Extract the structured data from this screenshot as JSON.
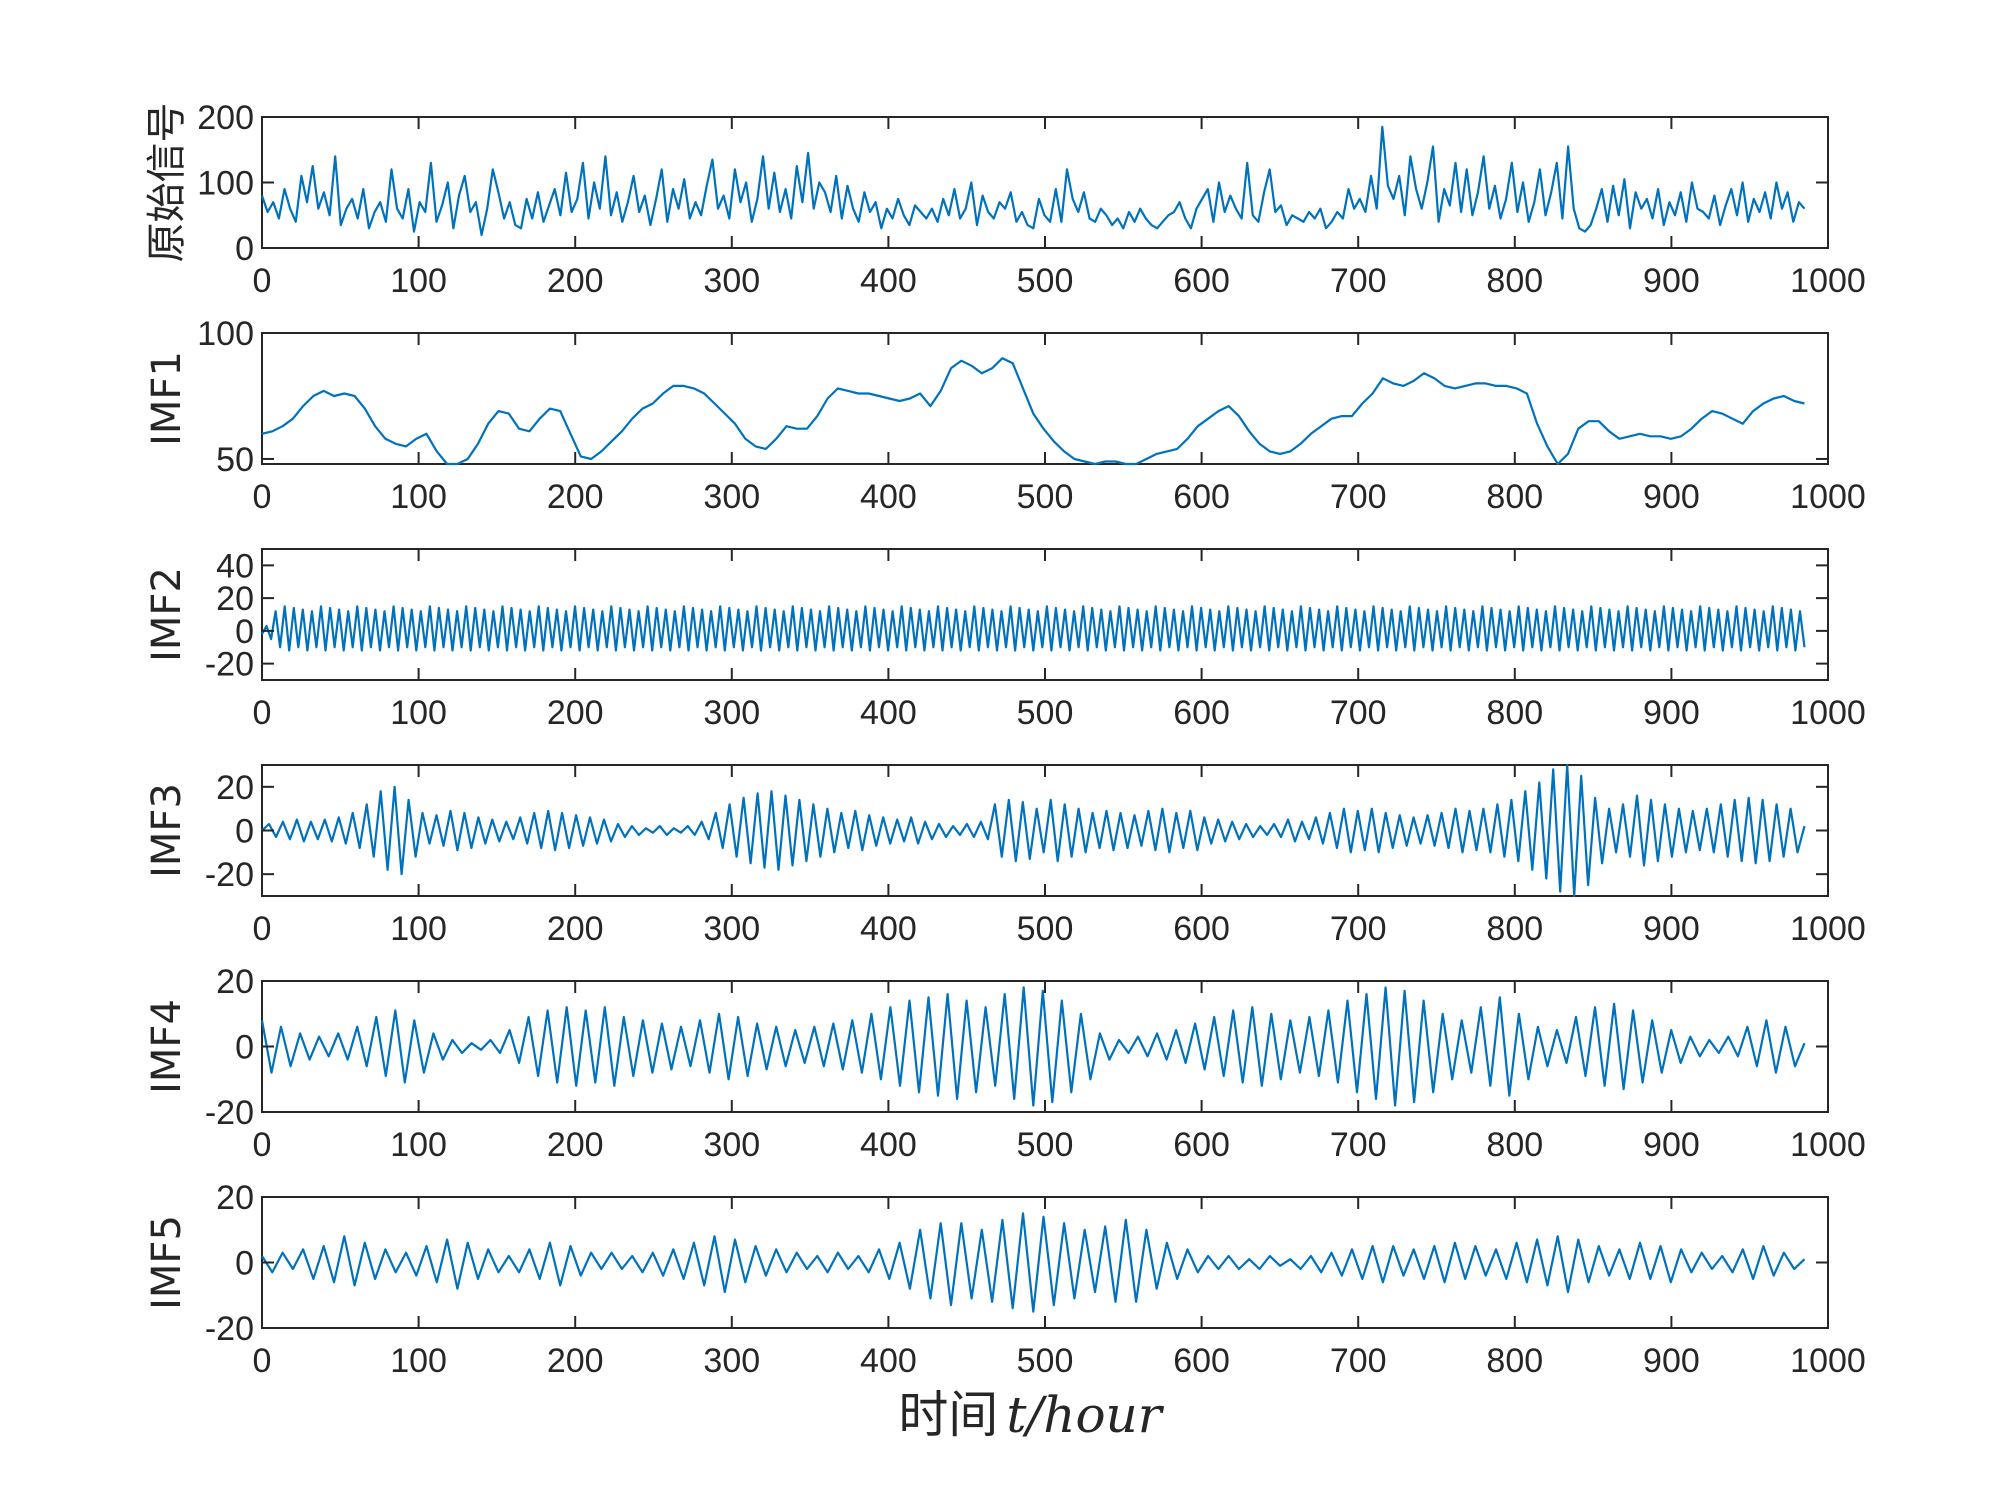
{
  "chart_data": {
    "type": "line",
    "layout": "stacked-subplots",
    "xlabel": {
      "chinese": "时间",
      "symbol": "t/hour"
    },
    "xlim": [
      0,
      1000
    ],
    "xticks": [
      0,
      100,
      200,
      300,
      400,
      500,
      600,
      700,
      800,
      900,
      1000
    ],
    "grid": false,
    "line_color": "#0072bd",
    "subplots": [
      {
        "ylabel": "原始信号",
        "ylim": [
          0,
          200
        ],
        "yticks": [
          0,
          100,
          200
        ],
        "values": [
          80,
          55,
          70,
          45,
          90,
          60,
          40,
          110,
          70,
          125,
          60,
          85,
          50,
          140,
          35,
          60,
          75,
          45,
          90,
          30,
          55,
          70,
          40,
          120,
          60,
          45,
          90,
          25,
          70,
          55,
          130,
          40,
          65,
          100,
          30,
          80,
          110,
          55,
          70,
          20,
          60,
          120,
          85,
          45,
          70,
          35,
          30,
          75,
          45,
          85,
          40,
          65,
          90,
          50,
          115,
          55,
          75,
          130,
          45,
          100,
          60,
          140,
          50,
          85,
          40,
          70,
          110,
          55,
          80,
          35,
          75,
          120,
          40,
          90,
          60,
          105,
          45,
          70,
          50,
          95,
          135,
          60,
          80,
          45,
          120,
          70,
          100,
          40,
          75,
          140,
          60,
          115,
          55,
          90,
          45,
          125,
          70,
          145,
          60,
          100,
          85,
          55,
          110,
          45,
          95,
          60,
          40,
          85,
          55,
          70,
          30,
          60,
          45,
          75,
          50,
          35,
          65,
          55,
          45,
          60,
          40,
          75,
          50,
          90,
          45,
          60,
          100,
          35,
          80,
          55,
          45,
          70,
          60,
          85,
          40,
          55,
          35,
          30,
          75,
          50,
          40,
          90,
          40,
          120,
          75,
          55,
          85,
          45,
          40,
          60,
          50,
          35,
          45,
          30,
          55,
          40,
          60,
          45,
          35,
          30,
          40,
          50,
          55,
          70,
          45,
          30,
          60,
          75,
          90,
          40,
          100,
          55,
          80,
          60,
          45,
          130,
          50,
          40,
          85,
          120,
          55,
          65,
          35,
          50,
          45,
          40,
          55,
          45,
          60,
          30,
          40,
          55,
          45,
          90,
          60,
          75,
          55,
          110,
          60,
          185,
          95,
          75,
          110,
          50,
          140,
          90,
          60,
          100,
          155,
          40,
          90,
          65,
          130,
          55,
          120,
          50,
          85,
          140,
          60,
          95,
          45,
          75,
          130,
          55,
          100,
          40,
          70,
          120,
          50,
          85,
          130,
          45,
          155,
          60,
          30,
          25,
          35,
          60,
          90,
          40,
          95,
          50,
          105,
          30,
          85,
          60,
          75,
          45,
          90,
          35,
          70,
          50,
          85,
          40,
          100,
          60,
          55,
          45,
          80,
          35,
          65,
          90,
          50,
          100,
          40,
          75,
          55,
          85,
          45,
          100,
          60,
          85,
          40,
          70,
          60
        ]
      },
      {
        "ylabel": "IMF1",
        "ylim": [
          48,
          100
        ],
        "yticks": [
          50,
          100
        ],
        "values": [
          60,
          61,
          63,
          66,
          71,
          75,
          77,
          75,
          76,
          75,
          70,
          63,
          58,
          56,
          55,
          58,
          60,
          53,
          48,
          48,
          50,
          56,
          64,
          69,
          68,
          62,
          61,
          66,
          70,
          69,
          60,
          51,
          50,
          53,
          57,
          61,
          66,
          70,
          72,
          76,
          79,
          79,
          78,
          76,
          72,
          68,
          64,
          58,
          55,
          54,
          58,
          63,
          62,
          62,
          67,
          74,
          78,
          77,
          76,
          76,
          75,
          74,
          73,
          74,
          76,
          71,
          77,
          86,
          89,
          87,
          84,
          86,
          90,
          88,
          78,
          68,
          62,
          57,
          53,
          50,
          49,
          48,
          49,
          49,
          48,
          48,
          50,
          52,
          53,
          54,
          58,
          63,
          66,
          69,
          71,
          67,
          61,
          56,
          53,
          52,
          53,
          56,
          60,
          63,
          66,
          67,
          67,
          72,
          76,
          82,
          80,
          79,
          81,
          84,
          82,
          79,
          78,
          79,
          80,
          80,
          79,
          79,
          78,
          76,
          64,
          55,
          48,
          52,
          62,
          65,
          65,
          61,
          58,
          59,
          60,
          59,
          59,
          58,
          59,
          62,
          66,
          69,
          68,
          66,
          64,
          69,
          72,
          74,
          75,
          73,
          72
        ]
      },
      {
        "ylabel": "IMF2",
        "ylim": [
          -30,
          50
        ],
        "yticks": [
          -20,
          0,
          20,
          40
        ],
        "values": [
          -2,
          3,
          -5,
          12,
          -10,
          15,
          -12,
          14,
          -10,
          13,
          -12,
          12,
          -10,
          15,
          -12,
          14,
          -10,
          13,
          -12,
          12,
          -10,
          15,
          -12,
          14,
          -10,
          13,
          -12,
          12,
          -10,
          15,
          -12,
          14,
          -10,
          13,
          -12,
          12,
          -10,
          15,
          -12,
          14,
          -10,
          13,
          -12,
          12,
          -10,
          15,
          -12,
          14,
          -10,
          13,
          -12,
          12,
          -10,
          15,
          -12,
          14,
          -10,
          13,
          -12,
          12,
          -10,
          15,
          -12,
          14,
          -10,
          13,
          -12,
          12,
          -10,
          15,
          -12,
          14,
          -10,
          13,
          -12,
          12,
          -10,
          15,
          -12,
          14,
          -10,
          13,
          -12,
          12,
          -10,
          15,
          -12,
          14,
          -10,
          13,
          -12,
          12,
          -10,
          15,
          -12,
          14,
          -10,
          13,
          -12,
          12,
          -10,
          15,
          -12,
          14,
          -10,
          13,
          -12,
          12,
          -10,
          15,
          -12,
          14,
          -10,
          13,
          -12,
          12,
          -10,
          15,
          -12,
          14,
          -10,
          13,
          -12,
          12,
          -10,
          15,
          -12,
          14,
          -10,
          13,
          -12,
          12,
          -10,
          15,
          -12,
          14,
          -10,
          13,
          -12,
          12,
          -10,
          15,
          -12,
          14,
          -10,
          13,
          -12,
          12,
          -10,
          15,
          -12,
          14,
          -10,
          13,
          -12,
          12,
          -10,
          15,
          -12,
          14,
          -10,
          13,
          -12,
          12,
          -10,
          15,
          -12,
          14,
          -10,
          13,
          -12,
          12,
          -10,
          15,
          -12,
          14,
          -10,
          13,
          -12,
          12,
          -10,
          15,
          -12,
          14,
          -10,
          13,
          -12,
          12,
          -10,
          15,
          -12,
          14,
          -10,
          13,
          -12,
          12,
          -10,
          15,
          -12,
          14,
          -10,
          13,
          -12,
          12,
          -10,
          15,
          -12,
          14,
          -10,
          13,
          -12,
          12,
          -10,
          15,
          -12,
          14,
          -10,
          13,
          -12,
          12,
          -10,
          15,
          -12,
          14,
          -10,
          13,
          -12,
          12,
          -10,
          15,
          -12,
          14,
          -10,
          13,
          -12,
          12,
          -10,
          15,
          -12,
          14,
          -10,
          13,
          -12,
          12,
          -10,
          15,
          -12,
          14,
          -10,
          13,
          -12,
          12,
          -10,
          15,
          -12,
          14,
          -10,
          13,
          -12,
          12,
          -10,
          15,
          -12,
          14,
          -10,
          13,
          -12,
          12,
          -10,
          15,
          -12,
          14,
          -10,
          13,
          -12,
          12,
          -10,
          15,
          -12,
          14,
          -10,
          13,
          -12,
          12,
          -10,
          15,
          -12,
          14,
          -10,
          13,
          -12,
          12,
          -10,
          15,
          -12,
          14,
          -10,
          13,
          -12,
          12,
          -10,
          15,
          -12,
          14,
          -10,
          13,
          -12,
          12,
          -10,
          15,
          -12,
          14,
          -10,
          13,
          -12,
          12,
          -10,
          15,
          -12,
          14,
          -10,
          13,
          -12,
          12,
          -10,
          15,
          -12,
          14,
          -10,
          13,
          -12,
          12,
          -10,
          15,
          -12,
          14,
          -10,
          13,
          -12,
          12,
          -10
        ]
      },
      {
        "ylabel": "IMF3",
        "ylim": [
          -30,
          30
        ],
        "yticks": [
          -20,
          0,
          20
        ],
        "values": [
          0,
          3,
          -3,
          4,
          -4,
          5,
          -5,
          4,
          -4,
          5,
          -5,
          6,
          -6,
          8,
          -8,
          12,
          -12,
          18,
          -18,
          20,
          -20,
          14,
          -12,
          8,
          -6,
          7,
          -7,
          9,
          -9,
          8,
          -8,
          6,
          -6,
          5,
          -5,
          4,
          -4,
          6,
          -6,
          8,
          -8,
          9,
          -9,
          8,
          -8,
          7,
          -7,
          6,
          -6,
          5,
          -5,
          3,
          -3,
          2,
          -2,
          1,
          -1,
          2,
          -2,
          1,
          -1,
          2,
          -2,
          4,
          -4,
          8,
          -8,
          12,
          -12,
          15,
          -15,
          17,
          -17,
          18,
          -18,
          16,
          -16,
          14,
          -14,
          12,
          -12,
          10,
          -10,
          8,
          -8,
          9,
          -9,
          7,
          -7,
          6,
          -6,
          5,
          -5,
          6,
          -6,
          4,
          -4,
          3,
          -3,
          2,
          -2,
          3,
          -3,
          4,
          -4,
          12,
          -12,
          14,
          -14,
          13,
          -13,
          10,
          -10,
          14,
          -14,
          12,
          -12,
          10,
          -10,
          8,
          -8,
          9,
          -9,
          8,
          -8,
          7,
          -7,
          9,
          -9,
          10,
          -10,
          8,
          -8,
          9,
          -9,
          6,
          -6,
          5,
          -5,
          4,
          -4,
          3,
          -3,
          2,
          -2,
          3,
          -3,
          5,
          -5,
          4,
          -4,
          6,
          -6,
          8,
          -8,
          10,
          -10,
          9,
          -9,
          10,
          -10,
          8,
          -8,
          7,
          -7,
          6,
          -6,
          7,
          -7,
          8,
          -8,
          10,
          -10,
          9,
          -9,
          10,
          -10,
          12,
          -12,
          14,
          -14,
          18,
          -18,
          22,
          -22,
          28,
          -28,
          30,
          -30,
          25,
          -25,
          15,
          -15,
          10,
          -10,
          12,
          -12,
          16,
          -16,
          14,
          -14,
          12,
          -12,
          10,
          -10,
          9,
          -9,
          10,
          -10,
          12,
          -12,
          14,
          -14,
          15,
          -15,
          14,
          -14,
          12,
          -12,
          10,
          -10,
          2
        ]
      },
      {
        "ylabel": "IMF4",
        "ylim": [
          -20,
          20
        ],
        "yticks": [
          -20,
          0,
          20
        ],
        "values": [
          8,
          -8,
          6,
          -6,
          4,
          -4,
          3,
          -3,
          4,
          -4,
          6,
          -6,
          9,
          -9,
          11,
          -11,
          8,
          -8,
          4,
          -4,
          2,
          -2,
          1,
          -1,
          2,
          -2,
          5,
          -5,
          9,
          -9,
          11,
          -11,
          12,
          -12,
          11,
          -11,
          12,
          -12,
          9,
          -9,
          8,
          -8,
          7,
          -7,
          6,
          -6,
          8,
          -8,
          10,
          -10,
          9,
          -9,
          7,
          -7,
          6,
          -6,
          5,
          -5,
          6,
          -6,
          7,
          -7,
          8,
          -8,
          10,
          -10,
          12,
          -12,
          14,
          -14,
          15,
          -15,
          16,
          -16,
          14,
          -14,
          12,
          -12,
          16,
          -16,
          18,
          -18,
          17,
          -17,
          14,
          -14,
          10,
          -10,
          4,
          -4,
          2,
          -2,
          3,
          -3,
          4,
          -4,
          5,
          -5,
          7,
          -7,
          9,
          -9,
          11,
          -11,
          12,
          -12,
          10,
          -10,
          8,
          -8,
          9,
          -9,
          11,
          -11,
          14,
          -14,
          16,
          -16,
          18,
          -18,
          17,
          -17,
          14,
          -14,
          10,
          -10,
          8,
          -8,
          12,
          -12,
          15,
          -15,
          10,
          -10,
          6,
          -6,
          5,
          -5,
          9,
          -9,
          12,
          -12,
          13,
          -13,
          11,
          -11,
          8,
          -8,
          5,
          -5,
          3,
          -3,
          2,
          -2,
          3,
          -3,
          6,
          -6,
          8,
          -8,
          6,
          -6,
          1
        ]
      },
      {
        "ylabel": "IMF5",
        "ylim": [
          -20,
          20
        ],
        "yticks": [
          -20,
          0,
          20
        ],
        "values": [
          2,
          -3,
          3,
          -2,
          4,
          -5,
          5,
          -6,
          8,
          -7,
          6,
          -5,
          4,
          -3,
          3,
          -4,
          5,
          -6,
          7,
          -8,
          6,
          -5,
          4,
          -3,
          2,
          -3,
          4,
          -5,
          6,
          -7,
          5,
          -4,
          3,
          -2,
          3,
          -2,
          2,
          -3,
          3,
          -4,
          4,
          -5,
          6,
          -7,
          8,
          -9,
          7,
          -6,
          5,
          -4,
          4,
          -3,
          3,
          -2,
          2,
          -3,
          3,
          -2,
          2,
          -3,
          4,
          -5,
          6,
          -8,
          10,
          -11,
          12,
          -13,
          12,
          -11,
          10,
          -12,
          13,
          -14,
          15,
          -15,
          14,
          -13,
          12,
          -11,
          10,
          -9,
          11,
          -12,
          13,
          -12,
          10,
          -8,
          6,
          -5,
          4,
          -3,
          2,
          -2,
          2,
          -2,
          1,
          -2,
          2,
          -1,
          1,
          -2,
          2,
          -3,
          3,
          -4,
          4,
          -5,
          5,
          -6,
          5,
          -4,
          4,
          -5,
          5,
          -6,
          6,
          -5,
          5,
          -4,
          4,
          -5,
          6,
          -6,
          7,
          -7,
          8,
          -9,
          7,
          -6,
          5,
          -4,
          4,
          -5,
          6,
          -5,
          5,
          -6,
          4,
          -3,
          3,
          -2,
          2,
          -3,
          4,
          -5,
          5,
          -4,
          3,
          -2,
          1
        ]
      }
    ]
  }
}
